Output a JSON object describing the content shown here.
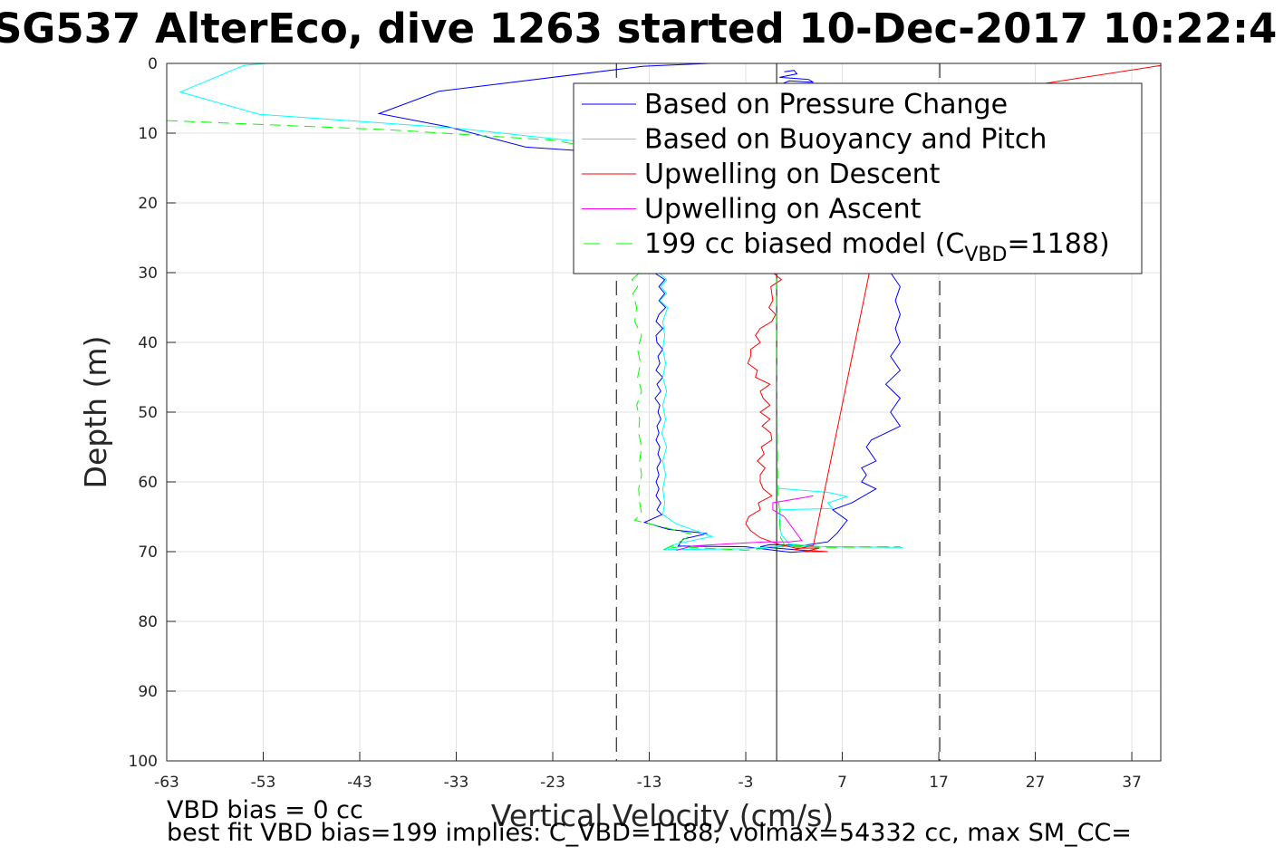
{
  "chart_data": {
    "type": "line",
    "title": "SG537 AlterEco, dive 1263 started 10-Dec-2017 10:22:4",
    "xlabel": "Vertical Velocity (cm/s)",
    "ylabel": "Depth (m)",
    "xlim": [
      -63,
      40
    ],
    "ylim": [
      0,
      100
    ],
    "y_reversed": true,
    "grid": true,
    "legend_placement": "top-right",
    "xticks": [
      "-63",
      "-53",
      "-43",
      "-33",
      "-23",
      "-13",
      "-3",
      "7",
      "17",
      "27",
      "37"
    ],
    "yticks": [
      "0",
      "10",
      "20",
      "30",
      "40",
      "50",
      "60",
      "70",
      "80",
      "90",
      "100"
    ],
    "reference_lines": [
      {
        "x": -16.4,
        "style": "dashed",
        "color": "#404040"
      },
      {
        "x": 0.2,
        "style": "solid",
        "color": "#404040"
      },
      {
        "x": 17.1,
        "style": "dashed",
        "color": "#404040"
      }
    ],
    "series": [
      {
        "name": "Based on Pressure Change",
        "color": "#0000ff",
        "style": "solid",
        "points": [
          [
            -6.7,
            0
          ],
          [
            -13.6,
            0.4
          ],
          [
            -34.8,
            4.0
          ],
          [
            -41.0,
            7.2
          ],
          [
            -33.8,
            9.1
          ],
          [
            -25.8,
            12.0
          ],
          [
            -15.0,
            13.0
          ],
          [
            -13,
            14.0
          ],
          [
            -12.5,
            30
          ],
          [
            -11.4,
            31
          ],
          [
            -12,
            32
          ],
          [
            -11.4,
            33
          ],
          [
            -12,
            34
          ],
          [
            -11.3,
            35
          ],
          [
            -12,
            36
          ],
          [
            -12.3,
            37
          ],
          [
            -11.6,
            38
          ],
          [
            -12.3,
            39
          ],
          [
            -12.2,
            40
          ],
          [
            -11.6,
            41
          ],
          [
            -12.1,
            42
          ],
          [
            -11.9,
            43
          ],
          [
            -12.3,
            44
          ],
          [
            -11.6,
            45
          ],
          [
            -12.2,
            46
          ],
          [
            -11.8,
            47
          ],
          [
            -12.4,
            48
          ],
          [
            -11.9,
            49
          ],
          [
            -12.1,
            50
          ],
          [
            -11.8,
            51
          ],
          [
            -12.2,
            52
          ],
          [
            -12.0,
            53
          ],
          [
            -12.3,
            54
          ],
          [
            -11.9,
            55
          ],
          [
            -12.1,
            56
          ],
          [
            -11.8,
            57
          ],
          [
            -12.2,
            58
          ],
          [
            -12.0,
            59
          ],
          [
            -12.3,
            60
          ],
          [
            -12.0,
            61
          ],
          [
            -12.3,
            62
          ],
          [
            -11.8,
            63
          ],
          [
            -12.2,
            64
          ],
          [
            -11.7,
            64.7
          ],
          [
            -13.5,
            65.8
          ],
          [
            -11.0,
            66.8
          ],
          [
            -7.0,
            67.4
          ],
          [
            -9.5,
            68.2
          ],
          [
            -10.0,
            69.2
          ],
          [
            -3,
            69.3
          ],
          [
            1.7,
            70.1
          ],
          [
            3.6,
            69.9
          ],
          [
            -1.5,
            69.3
          ],
          [
            -0.5,
            69.0
          ],
          [
            3.0,
            69.1
          ],
          [
            5.5,
            68.6
          ],
          [
            6.5,
            67.3
          ],
          [
            7.5,
            65.5
          ],
          [
            6.0,
            64
          ],
          [
            8.0,
            63
          ],
          [
            10.5,
            61
          ],
          [
            9.0,
            60
          ],
          [
            9.5,
            59
          ],
          [
            9.0,
            58
          ],
          [
            10.5,
            57
          ],
          [
            9.5,
            55
          ],
          [
            10.0,
            54
          ],
          [
            13.0,
            52
          ],
          [
            12.0,
            50
          ],
          [
            13.0,
            48
          ],
          [
            11.5,
            46
          ],
          [
            13.0,
            44
          ],
          [
            12.0,
            42
          ],
          [
            13.0,
            40
          ],
          [
            12.5,
            38
          ],
          [
            13.0,
            36
          ],
          [
            12.5,
            34
          ],
          [
            13.0,
            32
          ],
          [
            12.0,
            30
          ]
        ]
      },
      {
        "name": "Based on Buoyancy and Pitch",
        "color": "#00ffff",
        "style": "solid",
        "points": [
          [
            -52.7,
            0
          ],
          [
            -55,
            0.3
          ],
          [
            -61.6,
            4.1
          ],
          [
            -53.4,
            7.3
          ],
          [
            -32.9,
            9.3
          ],
          [
            -21.5,
            11.0
          ],
          [
            -14.8,
            12.0
          ],
          [
            -13.5,
            13.0
          ],
          [
            -12.7,
            14.0
          ],
          [
            -12,
            30
          ],
          [
            -11.2,
            31
          ],
          [
            -11.8,
            32
          ],
          [
            -11.2,
            33
          ],
          [
            -11.9,
            34
          ],
          [
            -11.1,
            35
          ],
          [
            -11.6,
            37
          ],
          [
            -11.4,
            39
          ],
          [
            -11.6,
            41
          ],
          [
            -11.3,
            43
          ],
          [
            -11.6,
            45
          ],
          [
            -11.2,
            47
          ],
          [
            -11.6,
            49
          ],
          [
            -11.3,
            51
          ],
          [
            -11.7,
            53
          ],
          [
            -11.2,
            55
          ],
          [
            -11.6,
            57
          ],
          [
            -11.3,
            59
          ],
          [
            -11.6,
            61
          ],
          [
            -11.4,
            63
          ],
          [
            -11.6,
            64.7
          ],
          [
            -10.2,
            66
          ],
          [
            -8.2,
            67
          ],
          [
            -6.5,
            67.8
          ],
          [
            -10.5,
            69
          ],
          [
            -11.5,
            69.7
          ],
          [
            -3,
            69.6
          ],
          [
            0.5,
            69.2
          ],
          [
            13.3,
            69.4
          ],
          [
            5.0,
            69.3
          ],
          [
            1.5,
            68.9
          ],
          [
            0.7,
            67.6
          ],
          [
            0.5,
            66
          ],
          [
            0.5,
            64
          ],
          [
            6.0,
            63.8
          ],
          [
            5.5,
            63
          ],
          [
            7.5,
            62.1
          ],
          [
            5.5,
            61.5
          ],
          [
            0.2,
            60.9
          ]
        ]
      },
      {
        "name": "Upwelling on Descent",
        "color": "#ff0000",
        "style": "solid",
        "points": [
          [
            -0.2,
            30
          ],
          [
            0.7,
            31
          ],
          [
            -0.4,
            32
          ],
          [
            -0.2,
            34
          ],
          [
            -0.6,
            35
          ],
          [
            0.1,
            36
          ],
          [
            -0.3,
            37
          ],
          [
            -1.5,
            38
          ],
          [
            -2.0,
            39
          ],
          [
            -1.5,
            40
          ],
          [
            -2.5,
            41
          ],
          [
            -2.5,
            42
          ],
          [
            -2.8,
            43
          ],
          [
            -1.8,
            44
          ],
          [
            -2.0,
            45
          ],
          [
            -0.5,
            46
          ],
          [
            -1.5,
            47
          ],
          [
            -1.2,
            48
          ],
          [
            -0.5,
            49
          ],
          [
            -1.5,
            50
          ],
          [
            -0.5,
            51
          ],
          [
            -1.3,
            52
          ],
          [
            -0.4,
            53
          ],
          [
            -0.3,
            54
          ],
          [
            -1.4,
            55
          ],
          [
            -1.1,
            56
          ],
          [
            -1.8,
            57
          ],
          [
            -1.0,
            58
          ],
          [
            -1.5,
            59
          ],
          [
            -1.5,
            60
          ],
          [
            -1.2,
            61
          ],
          [
            -0.3,
            62
          ],
          [
            -1.7,
            63
          ],
          [
            -1.5,
            64
          ],
          [
            -2.7,
            65
          ],
          [
            -3.0,
            66
          ],
          [
            -2.5,
            67
          ],
          [
            -1.5,
            68
          ],
          [
            0.5,
            69
          ],
          [
            2.2,
            69.5
          ],
          [
            4.6,
            69.5
          ],
          [
            3.0,
            70.0
          ],
          [
            5.5,
            70.0
          ],
          [
            2.0,
            69.7
          ],
          [
            4.0,
            69.1
          ],
          [
            9.8,
            30
          ],
          [
            12.0,
            20
          ],
          [
            15.0,
            10
          ],
          [
            18.0,
            5
          ],
          [
            40.0,
            0.3
          ]
        ]
      },
      {
        "name": "Upwelling on Ascent",
        "color": "#ff00ff",
        "style": "solid",
        "points": [
          [
            -10.2,
            69.8
          ],
          [
            -8.5,
            69.2
          ],
          [
            -5.0,
            68.9
          ],
          [
            -1.0,
            68.6
          ],
          [
            1.5,
            68.6
          ],
          [
            2.8,
            68.4
          ],
          [
            1.0,
            65.0
          ],
          [
            -0.2,
            64.0
          ],
          [
            -0.2,
            63.0
          ],
          [
            4.0,
            62.0
          ]
        ]
      },
      {
        "name": "199 cc biased model (C_VBD=1188)",
        "color": "#00ff00",
        "style": "dashed",
        "points": [
          [
            -63,
            8.2
          ],
          [
            -40,
            9.5
          ],
          [
            -23,
            11.0
          ],
          [
            -17,
            12.5
          ],
          [
            -14.8,
            13.5
          ],
          [
            -14.5,
            14
          ],
          [
            -14.0,
            30
          ],
          [
            -14.8,
            31
          ],
          [
            -14.2,
            32
          ],
          [
            -14.7,
            33
          ],
          [
            -14.3,
            35
          ],
          [
            -14.5,
            37
          ],
          [
            -13.8,
            39
          ],
          [
            -14.2,
            41
          ],
          [
            -13.9,
            43
          ],
          [
            -14.2,
            45
          ],
          [
            -13.8,
            47
          ],
          [
            -14.3,
            49
          ],
          [
            -14.0,
            51
          ],
          [
            -14.1,
            53
          ],
          [
            -13.8,
            55
          ],
          [
            -14.0,
            57
          ],
          [
            -13.8,
            59
          ],
          [
            -14.1,
            61
          ],
          [
            -14.0,
            63
          ],
          [
            -13.8,
            64.5
          ],
          [
            -14.5,
            65.5
          ],
          [
            -11.5,
            66.5
          ],
          [
            -8.5,
            67.5
          ],
          [
            -9.5,
            68.3
          ],
          [
            -10.3,
            69
          ],
          [
            -11.5,
            69.7
          ],
          [
            -10.0,
            69.3
          ],
          [
            -3,
            69.8
          ],
          [
            0.5,
            69.3
          ],
          [
            13.0,
            69.3
          ],
          [
            5,
            69.4
          ],
          [
            1.0,
            69.0
          ],
          [
            0.6,
            68.0
          ],
          [
            0.5,
            64
          ],
          [
            0.3,
            62
          ],
          [
            0.3,
            60
          ],
          [
            0.2,
            40
          ],
          [
            0.2,
            30
          ]
        ]
      },
      {
        "name": "",
        "color": "#0000ff",
        "style": "solid",
        "points": [
          [
            1.0,
            1.2
          ],
          [
            2.0,
            1.0
          ],
          [
            2.3,
            1.5
          ],
          [
            0.5,
            2.0
          ],
          [
            3.5,
            2.3
          ],
          [
            4.0,
            2.7
          ],
          [
            1.5,
            2.5
          ],
          [
            0.8,
            2.9
          ]
        ]
      }
    ],
    "annotations": [
      "VBD bias = 0 cc",
      "best fit VBD bias=199 implies: C_VBD=1188, volmax=54332 cc, max SM_CC="
    ]
  },
  "legend": {
    "entries": [
      {
        "label": "Based on Pressure Change",
        "color": "#0000ff",
        "style": "solid"
      },
      {
        "label": "Based on Buoyancy and Pitch",
        "color": "#00ffff",
        "style": "solid"
      },
      {
        "label": "Upwelling on Descent",
        "color": "#ff0000",
        "style": "solid"
      },
      {
        "label": "Upwelling on Ascent",
        "color": "#ff00ff",
        "style": "solid"
      },
      {
        "label_main": "199 cc biased model (C",
        "label_sub": "VBD",
        "label_tail": "=1188)",
        "color": "#00ff00",
        "style": "dashed"
      }
    ]
  }
}
